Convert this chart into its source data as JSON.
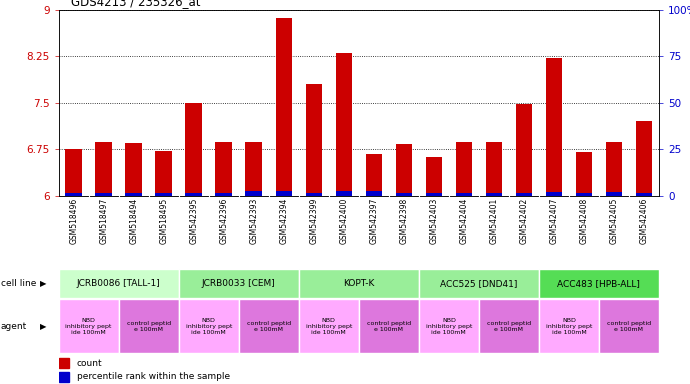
{
  "title": "GDS4213 / 235326_at",
  "samples": [
    "GSM518496",
    "GSM518497",
    "GSM518494",
    "GSM518495",
    "GSM542395",
    "GSM542396",
    "GSM542393",
    "GSM542394",
    "GSM542399",
    "GSM542400",
    "GSM542397",
    "GSM542398",
    "GSM542403",
    "GSM542404",
    "GSM542401",
    "GSM542402",
    "GSM542407",
    "GSM542408",
    "GSM542405",
    "GSM542406"
  ],
  "red_values": [
    6.75,
    6.87,
    6.85,
    6.73,
    7.5,
    6.87,
    6.87,
    8.87,
    7.8,
    8.3,
    6.68,
    6.83,
    6.62,
    6.87,
    6.87,
    7.48,
    8.22,
    6.7,
    6.87,
    7.2
  ],
  "blue_values": [
    0.05,
    0.05,
    0.05,
    0.05,
    0.05,
    0.05,
    0.08,
    0.07,
    0.05,
    0.07,
    0.07,
    0.05,
    0.05,
    0.05,
    0.05,
    0.05,
    0.06,
    0.05,
    0.06,
    0.05
  ],
  "ymin": 6.0,
  "ymax": 9.0,
  "yticks": [
    6.0,
    6.75,
    7.5,
    8.25,
    9.0
  ],
  "ytick_labels": [
    "6",
    "6.75",
    "7.5",
    "8.25",
    "9"
  ],
  "right_yticks": [
    0.0,
    0.25,
    0.5,
    0.75,
    1.0
  ],
  "right_ytick_labels": [
    "0",
    "25",
    "50",
    "75",
    "100%"
  ],
  "cell_line_groups": [
    {
      "label": "JCRB0086 [TALL-1]",
      "start": 0,
      "end": 4,
      "color": "#ccffcc"
    },
    {
      "label": "JCRB0033 [CEM]",
      "start": 4,
      "end": 8,
      "color": "#99ee99"
    },
    {
      "label": "KOPT-K",
      "start": 8,
      "end": 12,
      "color": "#99ee99"
    },
    {
      "label": "ACC525 [DND41]",
      "start": 12,
      "end": 16,
      "color": "#99ee99"
    },
    {
      "label": "ACC483 [HPB-ALL]",
      "start": 16,
      "end": 20,
      "color": "#55dd55"
    }
  ],
  "agent_groups": [
    {
      "label": "NBD\ninhibitory pept\nide 100mM",
      "start": 0,
      "end": 2,
      "color": "#ffaaff"
    },
    {
      "label": "control peptid\ne 100mM",
      "start": 2,
      "end": 4,
      "color": "#dd77dd"
    },
    {
      "label": "NBD\ninhibitory pept\nide 100mM",
      "start": 4,
      "end": 6,
      "color": "#ffaaff"
    },
    {
      "label": "control peptid\ne 100mM",
      "start": 6,
      "end": 8,
      "color": "#dd77dd"
    },
    {
      "label": "NBD\ninhibitory pept\nide 100mM",
      "start": 8,
      "end": 10,
      "color": "#ffaaff"
    },
    {
      "label": "control peptid\ne 100mM",
      "start": 10,
      "end": 12,
      "color": "#dd77dd"
    },
    {
      "label": "NBD\ninhibitory pept\nide 100mM",
      "start": 12,
      "end": 14,
      "color": "#ffaaff"
    },
    {
      "label": "control peptid\ne 100mM",
      "start": 14,
      "end": 16,
      "color": "#dd77dd"
    },
    {
      "label": "NBD\ninhibitory pept\nide 100mM",
      "start": 16,
      "end": 18,
      "color": "#ffaaff"
    },
    {
      "label": "control peptid\ne 100mM",
      "start": 18,
      "end": 20,
      "color": "#dd77dd"
    }
  ],
  "bar_color_red": "#cc0000",
  "bar_color_blue": "#0000cc",
  "bar_width": 0.55,
  "grid_color": "black",
  "grid_linestyle": "dotted",
  "ylabel_color": "#cc0000",
  "right_ylabel_color": "#0000cc",
  "bg_color": "#ffffff",
  "xtick_bg": "#dddddd",
  "legend_red_label": "count",
  "legend_blue_label": "percentile rank within the sample",
  "cell_line_label": "cell line",
  "agent_label": "agent"
}
